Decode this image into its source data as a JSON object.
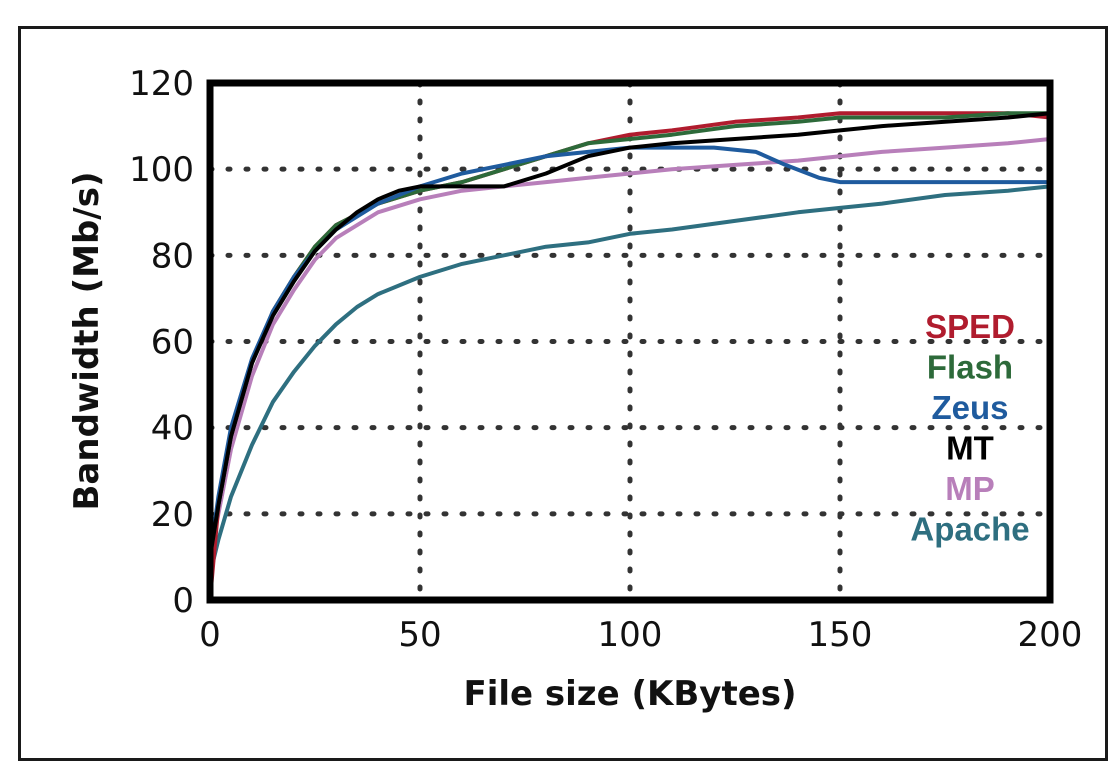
{
  "chart_data": {
    "type": "line",
    "xlabel": "File size (KBytes)",
    "ylabel": "Bandwidth (Mb/s)",
    "xlim": [
      0,
      200
    ],
    "ylim": [
      0,
      120
    ],
    "xticks": [
      "0",
      "50",
      "100",
      "150",
      "200"
    ],
    "yticks": [
      "0",
      "20",
      "40",
      "60",
      "80",
      "100",
      "120"
    ],
    "grid": true,
    "legend_position": "right",
    "series": [
      {
        "name": "SPED",
        "color": "#b01c2e",
        "points": [
          [
            0,
            0
          ],
          [
            2,
            22
          ],
          [
            5,
            38
          ],
          [
            10,
            55
          ],
          [
            15,
            67
          ],
          [
            20,
            75
          ],
          [
            25,
            82
          ],
          [
            30,
            87
          ],
          [
            40,
            92
          ],
          [
            50,
            95
          ],
          [
            60,
            97
          ],
          [
            70,
            100
          ],
          [
            80,
            103
          ],
          [
            90,
            106
          ],
          [
            100,
            108
          ],
          [
            110,
            109
          ],
          [
            125,
            111
          ],
          [
            140,
            112
          ],
          [
            150,
            113
          ],
          [
            160,
            113
          ],
          [
            175,
            113
          ],
          [
            190,
            113
          ],
          [
            200,
            112
          ]
        ]
      },
      {
        "name": "Flash",
        "color": "#2d6a3a",
        "points": [
          [
            0,
            10
          ],
          [
            2,
            22
          ],
          [
            5,
            38
          ],
          [
            10,
            55
          ],
          [
            15,
            67
          ],
          [
            20,
            75
          ],
          [
            25,
            82
          ],
          [
            30,
            87
          ],
          [
            40,
            92
          ],
          [
            50,
            95
          ],
          [
            60,
            97
          ],
          [
            70,
            100
          ],
          [
            80,
            103
          ],
          [
            90,
            106
          ],
          [
            100,
            107
          ],
          [
            110,
            108
          ],
          [
            125,
            110
          ],
          [
            140,
            111
          ],
          [
            150,
            112
          ],
          [
            160,
            112
          ],
          [
            175,
            112
          ],
          [
            190,
            113
          ],
          [
            200,
            113
          ]
        ]
      },
      {
        "name": "Zeus",
        "color": "#1f5b9e",
        "points": [
          [
            0,
            10
          ],
          [
            2,
            24
          ],
          [
            5,
            40
          ],
          [
            10,
            56
          ],
          [
            15,
            67
          ],
          [
            20,
            75
          ],
          [
            25,
            81
          ],
          [
            30,
            86
          ],
          [
            40,
            92
          ],
          [
            50,
            96
          ],
          [
            60,
            99
          ],
          [
            70,
            101
          ],
          [
            80,
            103
          ],
          [
            90,
            104
          ],
          [
            100,
            105
          ],
          [
            110,
            105
          ],
          [
            120,
            105
          ],
          [
            130,
            104
          ],
          [
            137,
            101
          ],
          [
            145,
            98
          ],
          [
            150,
            97
          ],
          [
            160,
            97
          ],
          [
            175,
            97
          ],
          [
            190,
            97
          ],
          [
            200,
            97
          ]
        ]
      },
      {
        "name": "MT",
        "color": "#000000",
        "points": [
          [
            0,
            10
          ],
          [
            2,
            22
          ],
          [
            5,
            38
          ],
          [
            10,
            55
          ],
          [
            15,
            66
          ],
          [
            20,
            74
          ],
          [
            25,
            81
          ],
          [
            30,
            86
          ],
          [
            35,
            90
          ],
          [
            40,
            93
          ],
          [
            45,
            95
          ],
          [
            50,
            96
          ],
          [
            60,
            96
          ],
          [
            70,
            96
          ],
          [
            80,
            99
          ],
          [
            90,
            103
          ],
          [
            100,
            105
          ],
          [
            110,
            106
          ],
          [
            125,
            107
          ],
          [
            140,
            108
          ],
          [
            150,
            109
          ],
          [
            160,
            110
          ],
          [
            175,
            111
          ],
          [
            190,
            112
          ],
          [
            200,
            113
          ]
        ]
      },
      {
        "name": "MP",
        "color": "#b87fba",
        "points": [
          [
            0,
            10
          ],
          [
            2,
            20
          ],
          [
            5,
            35
          ],
          [
            10,
            52
          ],
          [
            15,
            64
          ],
          [
            20,
            72
          ],
          [
            25,
            79
          ],
          [
            30,
            84
          ],
          [
            40,
            90
          ],
          [
            50,
            93
          ],
          [
            60,
            95
          ],
          [
            70,
            96
          ],
          [
            80,
            97
          ],
          [
            90,
            98
          ],
          [
            100,
            99
          ],
          [
            110,
            100
          ],
          [
            125,
            101
          ],
          [
            140,
            102
          ],
          [
            150,
            103
          ],
          [
            160,
            104
          ],
          [
            175,
            105
          ],
          [
            190,
            106
          ],
          [
            200,
            107
          ]
        ]
      },
      {
        "name": "Apache",
        "color": "#2e6f80",
        "points": [
          [
            0,
            6
          ],
          [
            2,
            14
          ],
          [
            5,
            24
          ],
          [
            10,
            36
          ],
          [
            15,
            46
          ],
          [
            20,
            53
          ],
          [
            25,
            59
          ],
          [
            30,
            64
          ],
          [
            35,
            68
          ],
          [
            40,
            71
          ],
          [
            50,
            75
          ],
          [
            60,
            78
          ],
          [
            70,
            80
          ],
          [
            80,
            82
          ],
          [
            90,
            83
          ],
          [
            100,
            85
          ],
          [
            110,
            86
          ],
          [
            125,
            88
          ],
          [
            140,
            90
          ],
          [
            150,
            91
          ],
          [
            160,
            92
          ],
          [
            175,
            94
          ],
          [
            190,
            95
          ],
          [
            200,
            96
          ]
        ]
      }
    ]
  }
}
